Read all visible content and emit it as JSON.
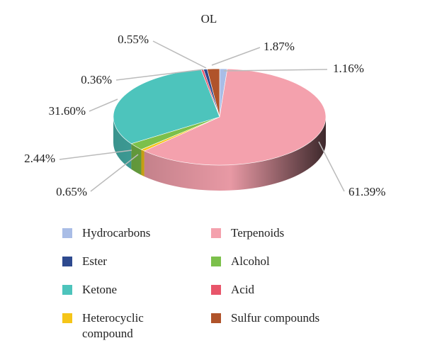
{
  "chart_data": {
    "type": "pie3d",
    "title": "OL",
    "categories": [
      "Hydrocarbons",
      "Terpenoids",
      "Ester",
      "Alcohol",
      "Ketone",
      "Acid",
      "Heterocyclic compound",
      "Sulfur compounds"
    ],
    "values": [
      1.16,
      61.39,
      0.55,
      2.44,
      31.6,
      0.36,
      0.65,
      1.87
    ],
    "value_labels": [
      "1.16%",
      "61.39%",
      "0.55%",
      "2.44%",
      "31.60%",
      "0.36%",
      "0.65%",
      "1.87%"
    ],
    "colors": [
      "#a9bde6",
      "#f4a1ad",
      "#2e4a8f",
      "#7cc04b",
      "#4dc4bc",
      "#e8556a",
      "#f5c518",
      "#b0532a"
    ]
  }
}
